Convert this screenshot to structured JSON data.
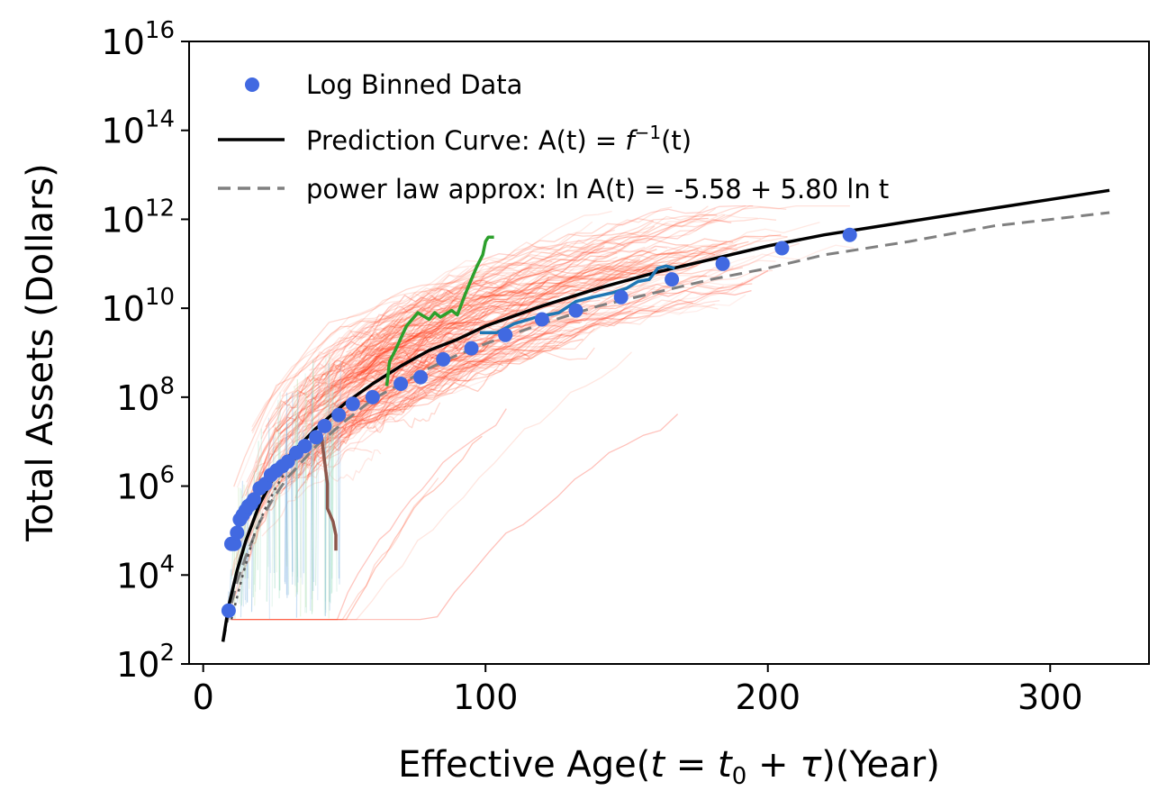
{
  "chart_data": {
    "type": "scatter",
    "xlabel": "Effective Age(t = t0 + τ)(Year)",
    "xlabel_parts": {
      "prefix": "Effective Age(",
      "t": "t",
      "eq": " = ",
      "t0_base": "t",
      "t0_sub": "0",
      "plus": " + ",
      "tau": "τ",
      "suffix": ")(Year)"
    },
    "ylabel": "Total Assets (Dollars)",
    "xlim": [
      -5,
      335
    ],
    "ylim_log10": [
      2,
      16
    ],
    "y_scale": "log",
    "grid": false,
    "legend_position": "top-left",
    "x_ticks": [
      0,
      100,
      200,
      300
    ],
    "x_tick_labels": [
      "0",
      "100",
      "200",
      "300"
    ],
    "y_ticks_log10": [
      2,
      4,
      6,
      8,
      10,
      12,
      14,
      16
    ],
    "y_tick_base": "10",
    "y_tick_exponents": [
      "2",
      "4",
      "6",
      "8",
      "10",
      "12",
      "14",
      "16"
    ],
    "legend": [
      {
        "kind": "marker",
        "color": "#4169e1",
        "label": "Log Binned Data"
      },
      {
        "kind": "solid",
        "color": "#000000",
        "label_before": "Prediction Curve: A(t)  = ",
        "label_func": "f",
        "label_sup": "−1",
        "label_after": "(t)",
        "label": "Prediction Curve: A(t)  = f−1(t)"
      },
      {
        "kind": "dashed",
        "color": "#808080",
        "label": "power law approx: ln A(t) = -5.58 + 5.80 ln t"
      }
    ],
    "series": [
      {
        "name": "Log Binned Data",
        "kind": "scatter",
        "color": "#4169e1",
        "points": [
          [
            9,
            3.2
          ],
          [
            10,
            4.7
          ],
          [
            11,
            4.7
          ],
          [
            12,
            4.95
          ],
          [
            13,
            5.25
          ],
          [
            14,
            5.35
          ],
          [
            15,
            5.45
          ],
          [
            16,
            5.55
          ],
          [
            17,
            5.6
          ],
          [
            18,
            5.7
          ],
          [
            20,
            5.95
          ],
          [
            22,
            6.05
          ],
          [
            24,
            6.25
          ],
          [
            26,
            6.35
          ],
          [
            28,
            6.45
          ],
          [
            30,
            6.55
          ],
          [
            33,
            6.75
          ],
          [
            36,
            6.9
          ],
          [
            40,
            7.1
          ],
          [
            43,
            7.35
          ],
          [
            48,
            7.6
          ],
          [
            53,
            7.85
          ],
          [
            60,
            8.0
          ],
          [
            70,
            8.3
          ],
          [
            77,
            8.45
          ],
          [
            85,
            8.85
          ],
          [
            95,
            9.1
          ],
          [
            107,
            9.4
          ],
          [
            120,
            9.75
          ],
          [
            132,
            9.95
          ],
          [
            148,
            10.25
          ],
          [
            166,
            10.65
          ],
          [
            184,
            11.0
          ],
          [
            205,
            11.35
          ],
          [
            229,
            11.65
          ]
        ]
      },
      {
        "name": "Prediction Curve",
        "kind": "line",
        "color": "#000000",
        "points": [
          [
            7,
            2.5
          ],
          [
            9,
            3.3
          ],
          [
            12,
            4.1
          ],
          [
            15,
            4.75
          ],
          [
            20,
            5.6
          ],
          [
            25,
            6.2
          ],
          [
            30,
            6.65
          ],
          [
            40,
            7.3
          ],
          [
            50,
            7.85
          ],
          [
            60,
            8.3
          ],
          [
            70,
            8.7
          ],
          [
            80,
            9.05
          ],
          [
            90,
            9.3
          ],
          [
            100,
            9.6
          ],
          [
            120,
            10.05
          ],
          [
            140,
            10.45
          ],
          [
            160,
            10.8
          ],
          [
            180,
            11.1
          ],
          [
            200,
            11.4
          ],
          [
            220,
            11.65
          ],
          [
            250,
            11.95
          ],
          [
            280,
            12.25
          ],
          [
            321,
            12.65
          ]
        ]
      },
      {
        "name": "power law approx",
        "kind": "dashed",
        "color": "#808080",
        "points": [
          [
            7,
            2.5
          ],
          [
            9,
            3.1
          ],
          [
            12,
            3.85
          ],
          [
            15,
            4.4
          ],
          [
            20,
            5.2
          ],
          [
            25,
            5.75
          ],
          [
            30,
            6.2
          ],
          [
            40,
            6.9
          ],
          [
            50,
            7.45
          ],
          [
            60,
            7.95
          ],
          [
            70,
            8.3
          ],
          [
            80,
            8.65
          ],
          [
            90,
            8.95
          ],
          [
            100,
            9.2
          ],
          [
            120,
            9.65
          ],
          [
            140,
            10.05
          ],
          [
            160,
            10.35
          ],
          [
            180,
            10.65
          ],
          [
            200,
            10.9
          ],
          [
            220,
            11.2
          ],
          [
            250,
            11.5
          ],
          [
            280,
            11.85
          ],
          [
            321,
            12.15
          ]
        ]
      },
      {
        "name": "green trajectory",
        "kind": "line",
        "color": "#2ca02c",
        "points": [
          [
            65,
            8.25
          ],
          [
            66,
            8.8
          ],
          [
            68,
            9.05
          ],
          [
            72,
            9.6
          ],
          [
            76,
            9.9
          ],
          [
            80,
            9.75
          ],
          [
            82,
            9.9
          ],
          [
            84,
            9.8
          ],
          [
            88,
            9.95
          ],
          [
            90,
            9.85
          ],
          [
            93,
            10.35
          ],
          [
            95,
            10.65
          ],
          [
            97,
            10.95
          ],
          [
            99,
            11.2
          ],
          [
            100,
            11.5
          ],
          [
            101,
            11.6
          ],
          [
            103,
            11.6
          ]
        ]
      },
      {
        "name": "blue trajectory",
        "kind": "line",
        "color": "#1f77b4",
        "points": [
          [
            98,
            9.45
          ],
          [
            104,
            9.45
          ],
          [
            110,
            9.65
          ],
          [
            118,
            9.8
          ],
          [
            126,
            9.9
          ],
          [
            132,
            10.15
          ],
          [
            138,
            10.25
          ],
          [
            145,
            10.35
          ],
          [
            150,
            10.45
          ],
          [
            154,
            10.6
          ],
          [
            158,
            10.65
          ],
          [
            161,
            10.9
          ],
          [
            164,
            10.95
          ],
          [
            167,
            10.9
          ]
        ]
      },
      {
        "name": "brown trajectory",
        "kind": "line",
        "color": "#8c564b",
        "points": [
          [
            42,
            7.05
          ],
          [
            43,
            6.55
          ],
          [
            44,
            6.05
          ],
          [
            44,
            5.5
          ],
          [
            45,
            5.35
          ],
          [
            46,
            5.2
          ],
          [
            47,
            4.9
          ],
          [
            47,
            4.55
          ]
        ]
      },
      {
        "name": "gray dotted trajectory",
        "kind": "dotted",
        "color": "#555555",
        "points": [
          [
            10,
            3.0
          ],
          [
            14,
            4.0
          ],
          [
            18,
            4.9
          ],
          [
            22,
            5.5
          ],
          [
            26,
            6.0
          ],
          [
            30,
            6.4
          ],
          [
            34,
            6.7
          ],
          [
            38,
            7.0
          ]
        ]
      }
    ]
  }
}
